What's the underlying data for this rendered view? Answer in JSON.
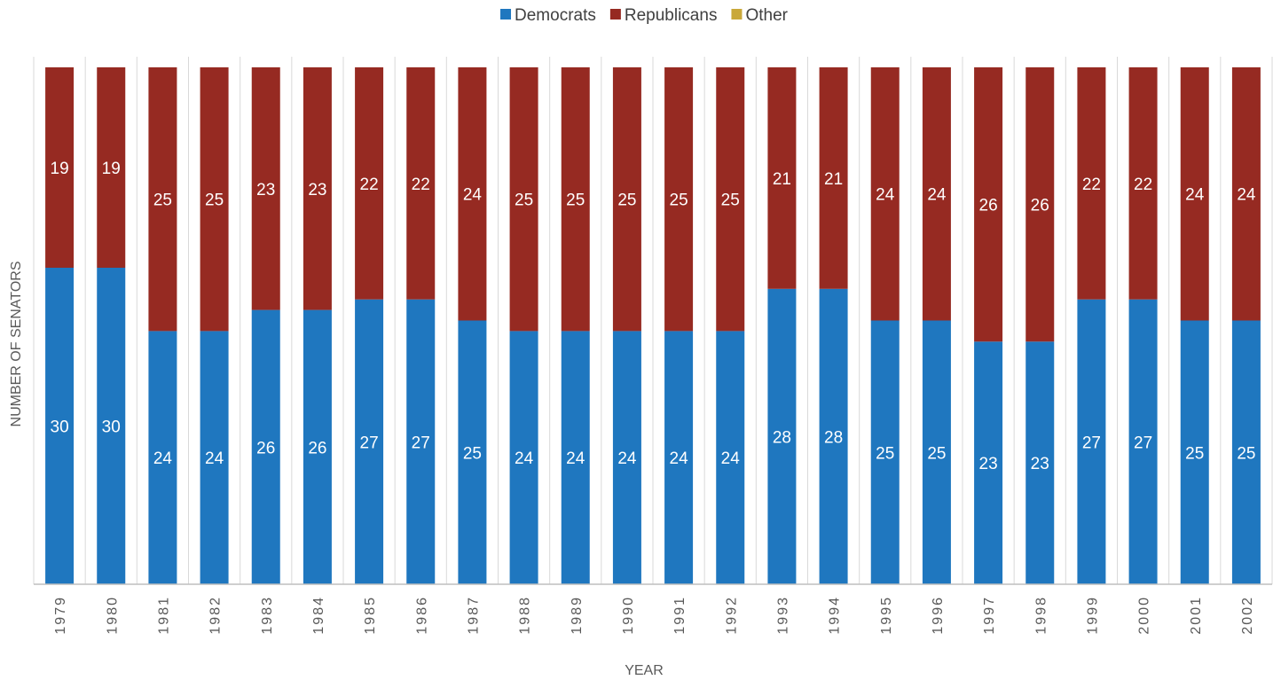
{
  "chart_data": {
    "type": "bar",
    "stacked": true,
    "title": "",
    "xlabel": "YEAR",
    "ylabel": "NUMBER OF SENATORS",
    "ylim": [
      0,
      50
    ],
    "grid": "vertical",
    "legend_position": "top",
    "categories": [
      "1979",
      "1980",
      "1981",
      "1982",
      "1983",
      "1984",
      "1985",
      "1986",
      "1987",
      "1988",
      "1989",
      "1990",
      "1991",
      "1992",
      "1993",
      "1994",
      "1995",
      "1996",
      "1997",
      "1998",
      "1999",
      "2000",
      "2001",
      "2002"
    ],
    "series": [
      {
        "name": "Democrats",
        "color": "#1F77BF",
        "values": [
          30,
          30,
          24,
          24,
          26,
          26,
          27,
          27,
          25,
          24,
          24,
          24,
          24,
          24,
          28,
          28,
          25,
          25,
          23,
          23,
          27,
          27,
          25,
          25
        ]
      },
      {
        "name": "Republicans",
        "color": "#962A22",
        "values": [
          19,
          19,
          25,
          25,
          23,
          23,
          22,
          22,
          24,
          25,
          25,
          25,
          25,
          25,
          21,
          21,
          24,
          24,
          26,
          26,
          22,
          22,
          24,
          24
        ]
      },
      {
        "name": "Other",
        "color": "#C9A83A",
        "values": [
          0,
          0,
          0,
          0,
          0,
          0,
          0,
          0,
          0,
          0,
          0,
          0,
          0,
          0,
          0,
          0,
          0,
          0,
          0,
          0,
          0,
          0,
          0,
          0
        ]
      }
    ]
  }
}
